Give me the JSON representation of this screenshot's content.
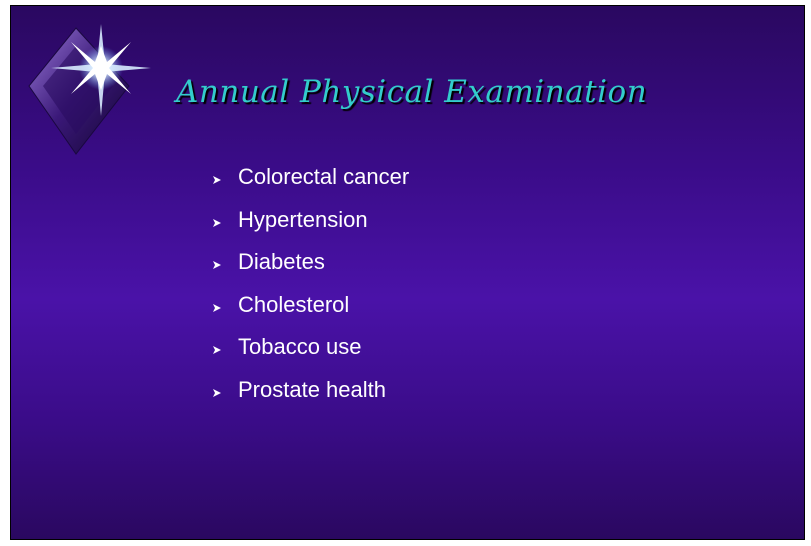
{
  "slide": {
    "title": "Annual Physical Examination",
    "bullets": [
      "Colorectal cancer",
      "Hypertension",
      "Diabetes",
      "Cholesterol",
      "Tobacco use",
      "Prostate health"
    ]
  }
}
